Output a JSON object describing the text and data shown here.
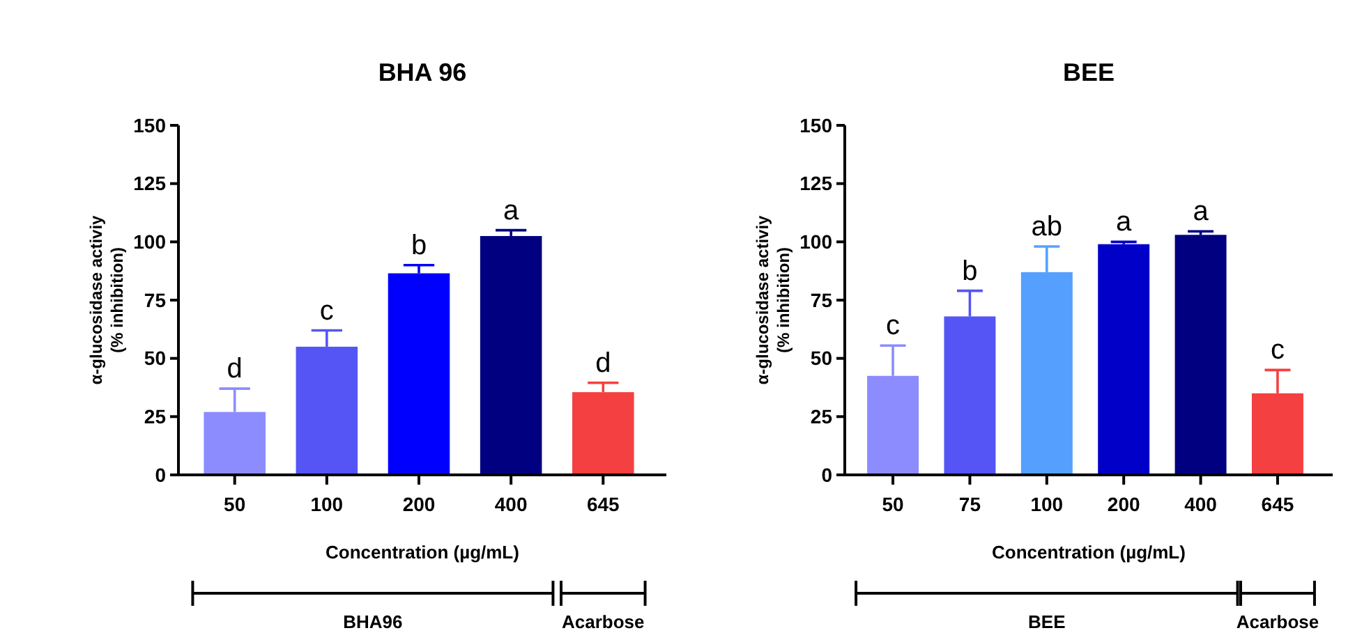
{
  "chart_data": [
    {
      "type": "bar",
      "title": "BHA 96",
      "xlabel": "Concentration (µg/mL)",
      "ylabel": "α-glucosidase activiy\n(% inhibition)",
      "categories": [
        "50",
        "100",
        "200",
        "400",
        "645"
      ],
      "values": [
        27,
        55,
        86.5,
        102.5,
        35.5
      ],
      "errors": [
        10,
        7,
        3.5,
        2.5,
        4
      ],
      "colors": [
        "#8c8cff",
        "#5555f5",
        "#0000ff",
        "#000080",
        "#f44040"
      ],
      "ylim": [
        0,
        150
      ],
      "yticks": [
        0,
        25,
        50,
        75,
        100,
        125,
        150
      ],
      "grid": false,
      "annotations": [
        {
          "text": "d",
          "x": "50",
          "y": 37
        },
        {
          "text": "c",
          "x": "100",
          "y": 62
        },
        {
          "text": "b",
          "x": "200",
          "y": 90
        },
        {
          "text": "a",
          "x": "400",
          "y": 105
        },
        {
          "text": "d",
          "x": "645",
          "y": 39.5
        },
        "BHA96",
        "Acarbose"
      ]
    },
    {
      "type": "bar",
      "title": "BEE",
      "xlabel": "Concentration (µg/mL)",
      "ylabel": "α-glucosidase activiy\n(% inhibition)",
      "categories": [
        "50",
        "75",
        "100",
        "200",
        "400",
        "645"
      ],
      "values": [
        42.5,
        68,
        87,
        99,
        103,
        35
      ],
      "errors": [
        13,
        11,
        11,
        1,
        1.5,
        10
      ],
      "colors": [
        "#8c8cff",
        "#5555f5",
        "#55a0ff",
        "#0000c8",
        "#000080",
        "#f44040"
      ],
      "ylim": [
        0,
        150
      ],
      "yticks": [
        0,
        25,
        50,
        75,
        100,
        125,
        150
      ],
      "grid": false,
      "annotations": [
        {
          "text": "c",
          "x": "50",
          "y": 55.5
        },
        {
          "text": "b",
          "x": "75",
          "y": 79
        },
        {
          "text": "ab",
          "x": "100",
          "y": 98
        },
        {
          "text": "a",
          "x": "200",
          "y": 100
        },
        {
          "text": "a",
          "x": "400",
          "y": 104.5
        },
        {
          "text": "c",
          "x": "645",
          "y": 45
        },
        "BEE",
        "Acarbose"
      ]
    }
  ]
}
